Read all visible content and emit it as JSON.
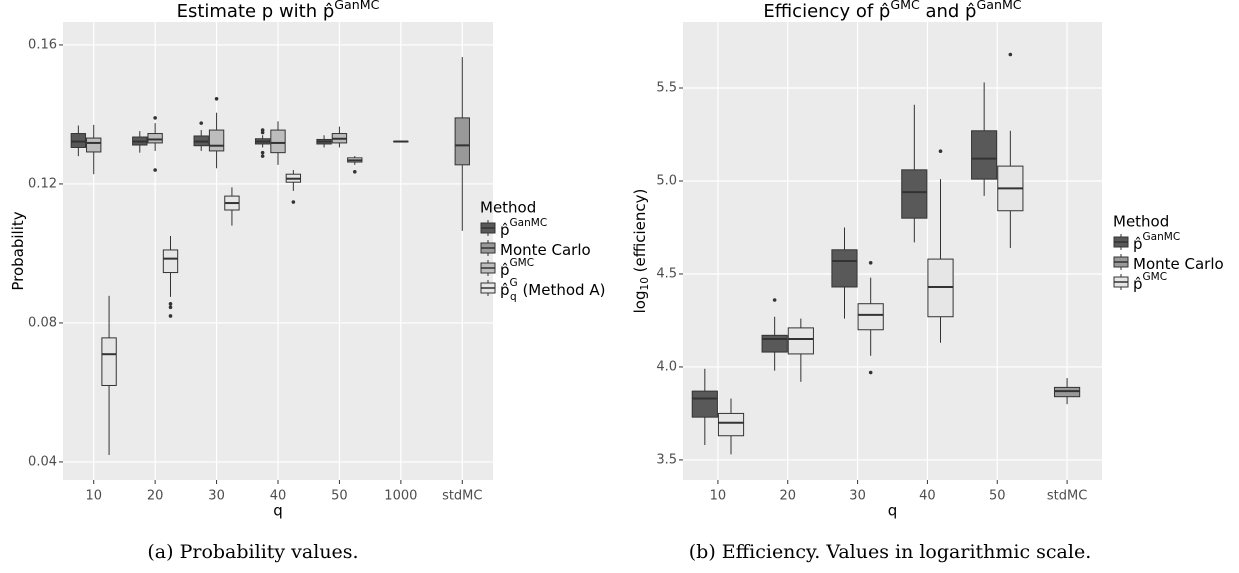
{
  "chart_data": [
    {
      "type": "box",
      "title_parts": [
        "Estimate p with p̂",
        "GanMC"
      ],
      "xlabel": "q",
      "ylabel_parts": [
        "Probability"
      ],
      "categories": [
        "10",
        "20",
        "30",
        "40",
        "50",
        "1000",
        "stdMC"
      ],
      "ylim": [
        0.0348,
        0.1666
      ],
      "yticks": [
        0.04,
        0.08,
        0.12,
        0.16
      ],
      "grid": true,
      "legend_title": "Method",
      "legend": "right",
      "caption": "(a) Probability values.",
      "series": [
        {
          "name": [
            "p̂",
            "GanMC"
          ],
          "color": "#595959",
          "values": [
            {
              "min": 0.128,
              "q1": 0.1305,
              "median": 0.1322,
              "q3": 0.1345,
              "max": 0.1368,
              "outliers": []
            },
            {
              "min": 0.129,
              "q1": 0.1312,
              "median": 0.1322,
              "q3": 0.1335,
              "max": 0.1352,
              "outliers": []
            },
            {
              "min": 0.1295,
              "q1": 0.131,
              "median": 0.1322,
              "q3": 0.1338,
              "max": 0.1355,
              "outliers": [
                0.1375
              ]
            },
            {
              "min": 0.1305,
              "q1": 0.1315,
              "median": 0.1322,
              "q3": 0.133,
              "max": 0.134,
              "outliers": [
                0.1348,
                0.1355,
                0.129,
                0.128
              ]
            },
            {
              "min": 0.1305,
              "q1": 0.1315,
              "median": 0.1322,
              "q3": 0.1328,
              "max": 0.134,
              "outliers": []
            },
            {
              "min": 0.132,
              "q1": 0.1321,
              "median": 0.1322,
              "q3": 0.1323,
              "max": 0.1324,
              "outliers": []
            },
            null
          ]
        },
        {
          "name": [
            "Monte Carlo"
          ],
          "color": "#999999",
          "values": [
            null,
            null,
            null,
            null,
            null,
            null,
            {
              "min": 0.1065,
              "q1": 0.1255,
              "median": 0.1311,
              "q3": 0.139,
              "max": 0.1565,
              "outliers": []
            }
          ]
        },
        {
          "name": [
            "p̂",
            "GMC"
          ],
          "color": "#bdbdbd",
          "values": [
            {
              "min": 0.1228,
              "q1": 0.1292,
              "median": 0.1318,
              "q3": 0.1332,
              "max": 0.137,
              "outliers": []
            },
            {
              "min": 0.1295,
              "q1": 0.1318,
              "median": 0.1328,
              "q3": 0.1345,
              "max": 0.1375,
              "outliers": [
                0.139,
                0.124
              ]
            },
            {
              "min": 0.1245,
              "q1": 0.1295,
              "median": 0.131,
              "q3": 0.1355,
              "max": 0.1405,
              "outliers": [
                0.1445
              ]
            },
            {
              "min": 0.1255,
              "q1": 0.129,
              "median": 0.1318,
              "q3": 0.1355,
              "max": 0.138,
              "outliers": []
            },
            {
              "min": 0.1305,
              "q1": 0.1318,
              "median": 0.133,
              "q3": 0.1345,
              "max": 0.1365,
              "outliers": []
            },
            null,
            null
          ]
        },
        {
          "name": [
            "p̂",
            "G",
            " (Method A)"
          ],
          "name_sub": "q",
          "color": "#e6e6e6",
          "values": [
            {
              "min": 0.042,
              "q1": 0.062,
              "median": 0.071,
              "q3": 0.0757,
              "max": 0.0878,
              "outliers": []
            },
            {
              "min": 0.0875,
              "q1": 0.0945,
              "median": 0.0985,
              "q3": 0.101,
              "max": 0.105,
              "outliers": [
                0.0855,
                0.0845,
                0.082
              ]
            },
            {
              "min": 0.108,
              "q1": 0.1125,
              "median": 0.1145,
              "q3": 0.1165,
              "max": 0.119,
              "outliers": []
            },
            {
              "min": 0.118,
              "q1": 0.1205,
              "median": 0.1215,
              "q3": 0.1228,
              "max": 0.124,
              "outliers": [
                0.1148
              ]
            },
            {
              "min": 0.1255,
              "q1": 0.1263,
              "median": 0.1268,
              "q3": 0.1275,
              "max": 0.128,
              "outliers": [
                0.1235
              ]
            },
            null,
            null
          ]
        }
      ]
    },
    {
      "type": "box",
      "title_parts": [
        "Efficiency of p̂",
        "GMC",
        " and p̂",
        "GanMC"
      ],
      "xlabel": "q",
      "ylabel_parts": [
        "log",
        "10",
        " (efficiency)"
      ],
      "categories": [
        "10",
        "20",
        "30",
        "40",
        "50",
        "stdMC"
      ],
      "ylim": [
        3.392,
        5.855
      ],
      "yticks": [
        3.5,
        {
          "value": 4,
          "label": "4.0"
        },
        4.5,
        {
          "value": 5,
          "label": "5.0"
        },
        5.5
      ],
      "grid": true,
      "legend_title": "Method",
      "legend": "right",
      "caption": "(b) Efficiency. Values in logarithmic scale.",
      "series": [
        {
          "name": [
            "p̂",
            "GanMC"
          ],
          "color": "#595959",
          "values": [
            {
              "min": 3.58,
              "q1": 3.73,
              "median": 3.83,
              "q3": 3.87,
              "max": 3.99,
              "outliers": []
            },
            {
              "min": 3.98,
              "q1": 4.08,
              "median": 4.15,
              "q3": 4.17,
              "max": 4.27,
              "outliers": [
                4.36
              ]
            },
            {
              "min": 4.26,
              "q1": 4.43,
              "median": 4.57,
              "q3": 4.63,
              "max": 4.75,
              "outliers": []
            },
            {
              "min": 4.67,
              "q1": 4.8,
              "median": 4.94,
              "q3": 5.06,
              "max": 5.41,
              "outliers": []
            },
            {
              "min": 4.92,
              "q1": 5.01,
              "median": 5.12,
              "q3": 5.27,
              "max": 5.53,
              "outliers": []
            },
            null
          ]
        },
        {
          "name": [
            "Monte Carlo"
          ],
          "color": "#999999",
          "values": [
            null,
            null,
            null,
            null,
            null,
            {
              "min": 3.8,
              "q1": 3.84,
              "median": 3.87,
              "q3": 3.89,
              "max": 3.94,
              "outliers": []
            }
          ]
        },
        {
          "name": [
            "p̂",
            "GMC"
          ],
          "color": "#e6e6e6",
          "values": [
            {
              "min": 3.53,
              "q1": 3.63,
              "median": 3.7,
              "q3": 3.75,
              "max": 3.83,
              "outliers": []
            },
            {
              "min": 3.92,
              "q1": 4.07,
              "median": 4.15,
              "q3": 4.21,
              "max": 4.26,
              "outliers": []
            },
            {
              "min": 4.06,
              "q1": 4.2,
              "median": 4.28,
              "q3": 4.34,
              "max": 4.48,
              "outliers": [
                4.56,
                3.97
              ]
            },
            {
              "min": 4.13,
              "q1": 4.27,
              "median": 4.43,
              "q3": 4.58,
              "max": 5.01,
              "outliers": [
                5.16
              ]
            },
            {
              "min": 4.64,
              "q1": 4.84,
              "median": 4.96,
              "q3": 5.08,
              "max": 5.27,
              "outliers": [
                5.68
              ]
            },
            null
          ]
        }
      ]
    }
  ]
}
